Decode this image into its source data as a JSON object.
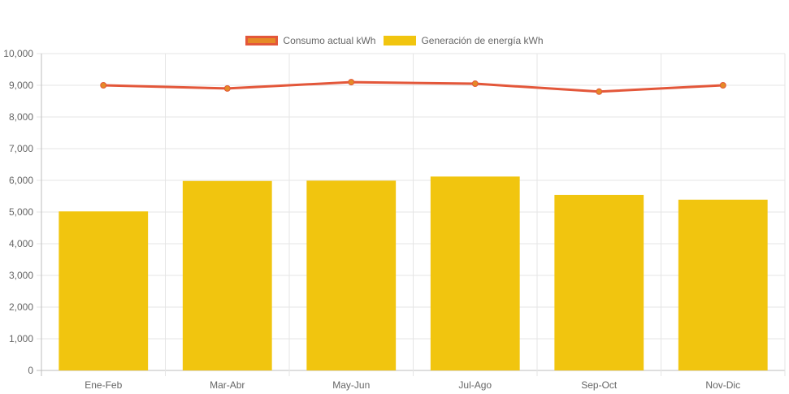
{
  "chart_data": {
    "type": "bar",
    "categories": [
      "Ene-Feb",
      "Mar-Abr",
      "May-Jun",
      "Jul-Ago",
      "Sep-Oct",
      "Nov-Dic"
    ],
    "series": [
      {
        "name": "Consumo actual kWh",
        "type": "line",
        "values": [
          9000,
          8900,
          9100,
          9050,
          8800,
          9000
        ],
        "color": "#e3573a",
        "point_color": "#e58a26"
      },
      {
        "name": "Generación de energía kWh",
        "type": "bar",
        "values": [
          5020,
          5980,
          5990,
          6120,
          5540,
          5390
        ],
        "color": "#f1c50f"
      }
    ],
    "ylim": [
      0,
      10000
    ],
    "yticks": [
      "0",
      "1,000",
      "2,000",
      "3,000",
      "4,000",
      "5,000",
      "6,000",
      "7,000",
      "8,000",
      "9,000",
      "10,000"
    ],
    "grid": true,
    "legend_position": "top-center"
  }
}
